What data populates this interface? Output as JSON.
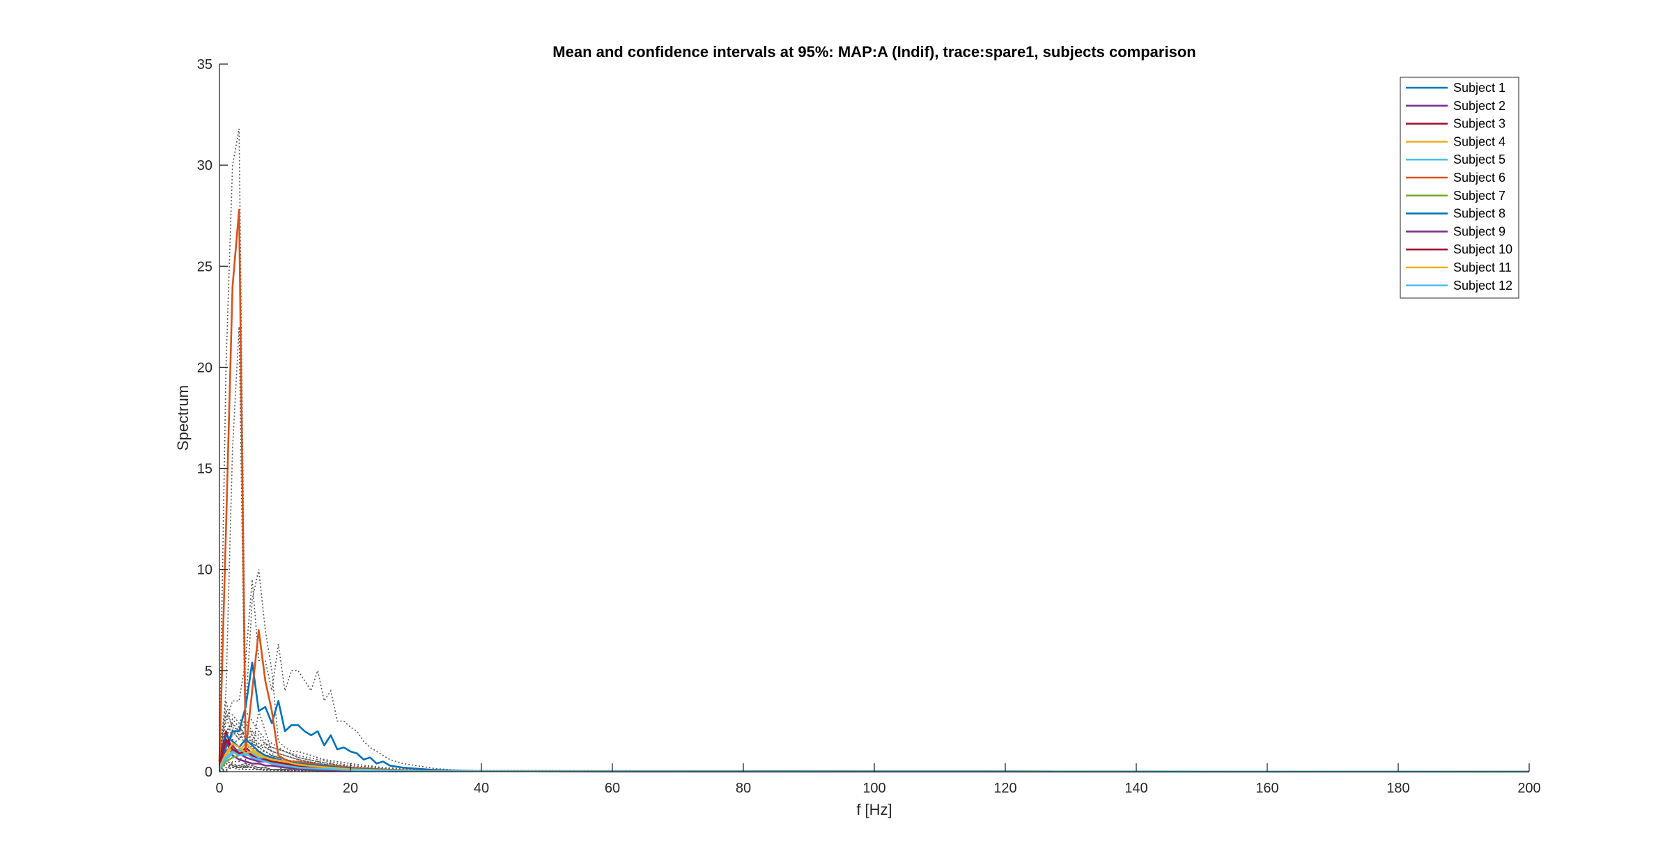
{
  "chart_data": {
    "type": "line",
    "title": "Mean and confidence intervals at 95%: MAP:A (Indif), trace:spare1, subjects comparison",
    "xlabel": "f [Hz]",
    "ylabel": "Spectrum",
    "xlim": [
      0,
      200
    ],
    "ylim": [
      0,
      35
    ],
    "xticks": [
      0,
      20,
      40,
      60,
      80,
      100,
      120,
      140,
      160,
      180,
      200
    ],
    "yticks": [
      0,
      5,
      10,
      15,
      20,
      25,
      30,
      35
    ],
    "grid": false,
    "legend_position": "top-right",
    "ci_style": "dotted",
    "ci_color": "#555555",
    "series": [
      {
        "name": "Subject 1",
        "color": "#0072BD",
        "x": [
          0,
          1,
          2,
          3,
          4,
          5,
          6,
          7,
          8,
          9,
          10,
          11,
          12,
          13,
          14,
          15,
          16,
          17,
          18,
          19,
          20,
          21,
          22,
          23,
          24,
          25,
          26,
          28,
          30,
          33,
          36,
          40,
          50,
          200
        ],
        "y": [
          0.2,
          1.2,
          2.0,
          2.0,
          3.2,
          5.4,
          3.0,
          3.2,
          2.4,
          3.5,
          2.0,
          2.3,
          2.3,
          2.0,
          1.8,
          2.0,
          1.3,
          1.8,
          1.1,
          1.2,
          1.0,
          0.9,
          0.6,
          0.7,
          0.4,
          0.5,
          0.3,
          0.2,
          0.15,
          0.08,
          0.05,
          0.02,
          0.01,
          0.0
        ],
        "ci_upper": [
          0.5,
          2.5,
          3.5,
          3.5,
          5.5,
          9.5,
          5.5,
          5.5,
          4.0,
          6.3,
          4.0,
          5.0,
          5.0,
          4.5,
          4.0,
          5.0,
          3.5,
          4.0,
          2.5,
          2.5,
          2.2,
          2.0,
          1.5,
          1.2,
          1.0,
          0.8,
          0.6,
          0.4,
          0.3,
          0.15,
          0.08,
          0.03,
          0.01,
          0.0
        ],
        "ci_lower": [
          0.0,
          0.0,
          0.5,
          0.5,
          1.0,
          1.5,
          0.8,
          0.8,
          0.8,
          0.7,
          0.5,
          0.5,
          0.5,
          0.5,
          0.4,
          0.5,
          0.3,
          0.4,
          0.3,
          0.3,
          0.2,
          0.2,
          0.1,
          0.1,
          0.1,
          0.1,
          0.05,
          0.05,
          0.03,
          0.02,
          0.01,
          0.0,
          0.0,
          0.0
        ]
      },
      {
        "name": "Subject 2",
        "color": "#7E2F8E",
        "x": [
          0,
          1,
          2,
          3,
          4,
          5,
          6,
          7,
          8,
          10,
          12,
          15,
          20,
          30,
          200
        ],
        "y": [
          0.3,
          1.5,
          0.8,
          0.6,
          0.5,
          0.4,
          0.4,
          0.3,
          0.3,
          0.2,
          0.15,
          0.1,
          0.05,
          0.01,
          0.0
        ],
        "ci_upper": [
          0.6,
          2.8,
          1.6,
          1.2,
          1.0,
          0.8,
          0.8,
          0.6,
          0.6,
          0.4,
          0.3,
          0.2,
          0.1,
          0.02,
          0.0
        ],
        "ci_lower": [
          0.0,
          0.4,
          0.2,
          0.1,
          0.1,
          0.1,
          0.1,
          0.05,
          0.05,
          0.05,
          0.03,
          0.02,
          0.01,
          0.0,
          0.0
        ]
      },
      {
        "name": "Subject 3",
        "color": "#A2142F",
        "x": [
          0,
          1,
          2,
          3,
          4,
          5,
          6,
          7,
          8,
          10,
          12,
          15,
          20,
          30,
          200
        ],
        "y": [
          0.5,
          2.0,
          1.0,
          0.8,
          1.2,
          0.9,
          0.6,
          0.7,
          0.5,
          0.4,
          0.3,
          0.2,
          0.1,
          0.02,
          0.0
        ],
        "ci_upper": [
          1.0,
          3.5,
          2.0,
          1.6,
          2.4,
          1.8,
          1.2,
          1.4,
          1.0,
          0.8,
          0.6,
          0.4,
          0.2,
          0.04,
          0.0
        ],
        "ci_lower": [
          0.0,
          0.6,
          0.3,
          0.2,
          0.3,
          0.2,
          0.1,
          0.2,
          0.1,
          0.1,
          0.05,
          0.05,
          0.02,
          0.0,
          0.0
        ]
      },
      {
        "name": "Subject 4",
        "color": "#EDB120",
        "x": [
          0,
          1,
          2,
          3,
          4,
          5,
          6,
          7,
          8,
          10,
          12,
          15,
          20,
          30,
          200
        ],
        "y": [
          0.2,
          0.8,
          1.2,
          1.0,
          1.4,
          1.1,
          0.9,
          0.7,
          0.6,
          0.5,
          0.35,
          0.25,
          0.1,
          0.02,
          0.0
        ],
        "ci_upper": [
          0.4,
          1.6,
          2.4,
          2.0,
          2.6,
          2.0,
          1.8,
          1.4,
          1.2,
          1.0,
          0.7,
          0.5,
          0.2,
          0.04,
          0.0
        ],
        "ci_lower": [
          0.0,
          0.2,
          0.3,
          0.3,
          0.4,
          0.3,
          0.2,
          0.2,
          0.1,
          0.1,
          0.1,
          0.05,
          0.02,
          0.0,
          0.0
        ]
      },
      {
        "name": "Subject 5",
        "color": "#4DBEEE",
        "x": [
          0,
          1,
          2,
          3,
          4,
          5,
          6,
          7,
          8,
          10,
          12,
          15,
          20,
          30,
          200
        ],
        "y": [
          0.1,
          0.6,
          0.9,
          1.1,
          0.8,
          0.9,
          0.7,
          0.6,
          0.5,
          0.4,
          0.3,
          0.2,
          0.1,
          0.02,
          0.0
        ],
        "ci_upper": [
          0.2,
          1.2,
          1.8,
          2.2,
          1.6,
          1.8,
          1.4,
          1.2,
          1.0,
          0.8,
          0.6,
          0.4,
          0.2,
          0.04,
          0.0
        ],
        "ci_lower": [
          0.0,
          0.1,
          0.2,
          0.3,
          0.2,
          0.2,
          0.2,
          0.1,
          0.1,
          0.1,
          0.05,
          0.05,
          0.02,
          0.0,
          0.0
        ]
      },
      {
        "name": "Subject 6",
        "color": "#D95319",
        "x": [
          0,
          1,
          2,
          3,
          4,
          5,
          6,
          7,
          8,
          9,
          10,
          11,
          12,
          14,
          16,
          20,
          25,
          30,
          40,
          200
        ],
        "y": [
          0.5,
          12.0,
          24.0,
          27.8,
          1.0,
          4.0,
          7.0,
          4.5,
          3.0,
          0.8,
          0.6,
          0.5,
          0.5,
          0.4,
          0.3,
          0.2,
          0.1,
          0.05,
          0.01,
          0.0
        ],
        "ci_upper": [
          1.0,
          20.0,
          30.0,
          31.8,
          3.0,
          8.5,
          10.0,
          7.0,
          5.0,
          1.5,
          1.2,
          1.0,
          1.0,
          0.8,
          0.6,
          0.4,
          0.2,
          0.1,
          0.02,
          0.0
        ],
        "ci_lower": [
          0.0,
          4.0,
          16.0,
          22.0,
          0.2,
          1.0,
          3.0,
          2.0,
          1.0,
          0.2,
          0.1,
          0.1,
          0.1,
          0.1,
          0.05,
          0.03,
          0.02,
          0.01,
          0.0,
          0.0
        ]
      },
      {
        "name": "Subject 7",
        "color": "#77AC30",
        "x": [
          0,
          1,
          2,
          3,
          4,
          5,
          6,
          7,
          8,
          10,
          12,
          15,
          20,
          30,
          200
        ],
        "y": [
          0.1,
          0.5,
          0.7,
          0.8,
          1.0,
          0.7,
          0.6,
          0.5,
          0.4,
          0.3,
          0.25,
          0.15,
          0.08,
          0.01,
          0.0
        ],
        "ci_upper": [
          0.2,
          1.0,
          1.4,
          1.6,
          2.0,
          1.4,
          1.2,
          1.0,
          0.8,
          0.6,
          0.5,
          0.3,
          0.16,
          0.02,
          0.0
        ],
        "ci_lower": [
          0.0,
          0.1,
          0.2,
          0.2,
          0.3,
          0.2,
          0.1,
          0.1,
          0.1,
          0.05,
          0.05,
          0.03,
          0.01,
          0.0,
          0.0
        ]
      },
      {
        "name": "Subject 8",
        "color": "#0072BD",
        "x": [
          0,
          1,
          2,
          3,
          4,
          5,
          6,
          7,
          8,
          10,
          12,
          15,
          20,
          30,
          200
        ],
        "y": [
          0.3,
          1.8,
          1.5,
          1.2,
          1.6,
          1.3,
          1.0,
          0.8,
          0.7,
          0.5,
          0.4,
          0.3,
          0.15,
          0.03,
          0.0
        ],
        "ci_upper": [
          0.6,
          3.0,
          2.8,
          2.4,
          3.0,
          2.5,
          2.0,
          1.6,
          1.4,
          1.0,
          0.8,
          0.6,
          0.3,
          0.06,
          0.0
        ],
        "ci_lower": [
          0.0,
          0.5,
          0.4,
          0.3,
          0.4,
          0.3,
          0.2,
          0.2,
          0.1,
          0.1,
          0.1,
          0.05,
          0.03,
          0.0,
          0.0
        ]
      },
      {
        "name": "Subject 9",
        "color": "#7E2F8E",
        "x": [
          0,
          1,
          2,
          3,
          4,
          5,
          6,
          7,
          8,
          10,
          12,
          15,
          20,
          30,
          200
        ],
        "y": [
          0.2,
          1.0,
          1.3,
          0.9,
          0.7,
          0.6,
          0.5,
          0.5,
          0.4,
          0.3,
          0.2,
          0.15,
          0.08,
          0.01,
          0.0
        ],
        "ci_upper": [
          0.4,
          2.0,
          2.4,
          1.8,
          1.4,
          1.2,
          1.0,
          1.0,
          0.8,
          0.6,
          0.4,
          0.3,
          0.16,
          0.02,
          0.0
        ],
        "ci_lower": [
          0.0,
          0.2,
          0.3,
          0.2,
          0.1,
          0.1,
          0.1,
          0.1,
          0.1,
          0.05,
          0.05,
          0.03,
          0.01,
          0.0,
          0.0
        ]
      },
      {
        "name": "Subject 10",
        "color": "#A2142F",
        "x": [
          0,
          1,
          2,
          3,
          4,
          5,
          6,
          7,
          8,
          10,
          12,
          15,
          20,
          30,
          200
        ],
        "y": [
          0.4,
          1.6,
          1.1,
          0.9,
          1.0,
          0.8,
          0.6,
          0.6,
          0.5,
          0.4,
          0.3,
          0.2,
          0.1,
          0.02,
          0.0
        ],
        "ci_upper": [
          0.8,
          3.0,
          2.2,
          1.8,
          2.0,
          1.6,
          1.2,
          1.2,
          1.0,
          0.8,
          0.6,
          0.4,
          0.2,
          0.04,
          0.0
        ],
        "ci_lower": [
          0.0,
          0.4,
          0.3,
          0.2,
          0.2,
          0.2,
          0.1,
          0.1,
          0.1,
          0.1,
          0.05,
          0.05,
          0.02,
          0.0,
          0.0
        ]
      },
      {
        "name": "Subject 11",
        "color": "#EDB120",
        "x": [
          0,
          1,
          2,
          3,
          4,
          5,
          6,
          7,
          8,
          10,
          12,
          15,
          20,
          30,
          200
        ],
        "y": [
          0.2,
          0.9,
          1.4,
          1.2,
          0.9,
          1.0,
          0.8,
          0.7,
          0.6,
          0.5,
          0.35,
          0.25,
          0.12,
          0.02,
          0.0
        ],
        "ci_upper": [
          0.4,
          1.8,
          2.6,
          2.2,
          1.8,
          2.0,
          1.6,
          1.4,
          1.2,
          1.0,
          0.7,
          0.5,
          0.24,
          0.04,
          0.0
        ],
        "ci_lower": [
          0.0,
          0.2,
          0.4,
          0.3,
          0.2,
          0.3,
          0.2,
          0.2,
          0.1,
          0.1,
          0.1,
          0.05,
          0.02,
          0.0,
          0.0
        ]
      },
      {
        "name": "Subject 12",
        "color": "#4DBEEE",
        "x": [
          0,
          1,
          2,
          3,
          4,
          5,
          6,
          7,
          8,
          10,
          12,
          15,
          20,
          30,
          200
        ],
        "y": [
          0.1,
          0.7,
          1.0,
          0.8,
          0.9,
          0.7,
          0.6,
          0.5,
          0.4,
          0.3,
          0.2,
          0.15,
          0.08,
          0.01,
          0.0
        ],
        "ci_upper": [
          0.2,
          1.4,
          2.0,
          1.6,
          1.8,
          1.4,
          1.2,
          1.0,
          0.8,
          0.6,
          0.4,
          0.3,
          0.16,
          0.02,
          0.0
        ],
        "ci_lower": [
          0.0,
          0.1,
          0.2,
          0.2,
          0.2,
          0.2,
          0.1,
          0.1,
          0.1,
          0.05,
          0.05,
          0.03,
          0.01,
          0.0,
          0.0
        ]
      }
    ]
  }
}
